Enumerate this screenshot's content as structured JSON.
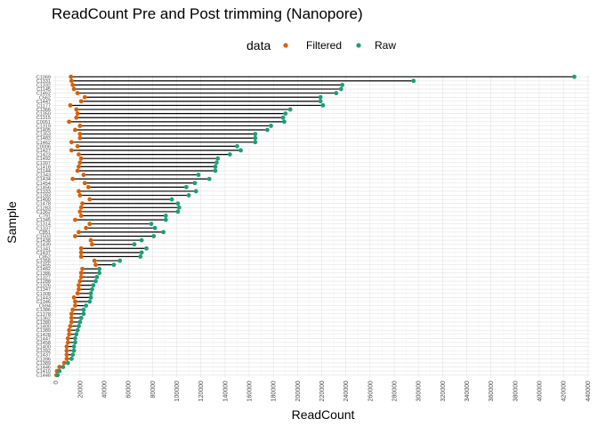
{
  "chart_data": {
    "type": "dumbbell",
    "title": "ReadCount Pre and Post trimming (Nanopore)",
    "xlabel": "ReadCount",
    "ylabel": "Sample",
    "legend": {
      "title": "data",
      "position": "top",
      "entries": [
        {
          "name": "Filtered",
          "color": "#D95F02"
        },
        {
          "name": "Raw",
          "color": "#1B9E77"
        }
      ]
    },
    "xlim": [
      -2000,
      442000
    ],
    "xticks": [
      0,
      20000,
      40000,
      60000,
      80000,
      100000,
      120000,
      140000,
      160000,
      180000,
      200000,
      220000,
      240000,
      260000,
      280000,
      300000,
      320000,
      340000,
      360000,
      380000,
      400000,
      420000,
      440000
    ],
    "xtick_labels": [
      "0",
      "20000",
      "40000",
      "60000",
      "80000",
      "100000",
      "120000",
      "140000",
      "160000",
      "180000",
      "200000",
      "220000",
      "240000",
      "260000",
      "280000",
      "300000",
      "320000",
      "340000",
      "360000",
      "380000",
      "400000",
      "420000",
      "440000"
    ],
    "grid": true,
    "samples": [
      {
        "label": "C1069",
        "raw": 429000,
        "filtered": 12500
      },
      {
        "label": "C1331",
        "raw": 296000,
        "filtered": 13000
      },
      {
        "label": "C1332",
        "raw": 237000,
        "filtered": 14000
      },
      {
        "label": "C1145",
        "raw": 236000,
        "filtered": 15000
      },
      {
        "label": "C1462",
        "raw": 232000,
        "filtered": 18000
      },
      {
        "label": "C562",
        "raw": 219000,
        "filtered": 24000
      },
      {
        "label": "C1447",
        "raw": 219000,
        "filtered": 21000
      },
      {
        "label": "C1177",
        "raw": 221000,
        "filtered": 12000
      },
      {
        "label": "C1366",
        "raw": 194000,
        "filtered": 17000
      },
      {
        "label": "C1350",
        "raw": 190000,
        "filtered": 18000
      },
      {
        "label": "C1315",
        "raw": 188000,
        "filtered": 17000
      },
      {
        "label": "C0051",
        "raw": 189000,
        "filtered": 11000
      },
      {
        "label": "C1319",
        "raw": 178000,
        "filtered": 20000
      },
      {
        "label": "C1405",
        "raw": 175000,
        "filtered": 16000
      },
      {
        "label": "C1353",
        "raw": 165000,
        "filtered": 20000
      },
      {
        "label": "C1483",
        "raw": 165000,
        "filtered": 20000
      },
      {
        "label": "C1462",
        "raw": 165000,
        "filtered": 13000
      },
      {
        "label": "C0006",
        "raw": 150000,
        "filtered": 18000
      },
      {
        "label": "C1427",
        "raw": 153000,
        "filtered": 13000
      },
      {
        "label": "C1423",
        "raw": 144000,
        "filtered": 19000
      },
      {
        "label": "C1492",
        "raw": 134000,
        "filtered": 21000
      },
      {
        "label": "C1307",
        "raw": 133000,
        "filtered": 20000
      },
      {
        "label": "C1418",
        "raw": 132000,
        "filtered": 19000
      },
      {
        "label": "C1144",
        "raw": 132000,
        "filtered": 18000
      },
      {
        "label": "C1343",
        "raw": 118000,
        "filtered": 23000
      },
      {
        "label": "C1434",
        "raw": 127000,
        "filtered": 14000
      },
      {
        "label": "C1454",
        "raw": 115000,
        "filtered": 24000
      },
      {
        "label": "C1456",
        "raw": 108000,
        "filtered": 27000
      },
      {
        "label": "C1333",
        "raw": 116000,
        "filtered": 19000
      },
      {
        "label": "C1283",
        "raw": 110000,
        "filtered": 20000
      },
      {
        "label": "C1400",
        "raw": 96000,
        "filtered": 28000
      },
      {
        "label": "C1478",
        "raw": 101000,
        "filtered": 22000
      },
      {
        "label": "C1283",
        "raw": 102000,
        "filtered": 21000
      },
      {
        "label": "C1362",
        "raw": 101000,
        "filtered": 20000
      },
      {
        "label": "C791",
        "raw": 91000,
        "filtered": 21000
      },
      {
        "label": "C1345",
        "raw": 91000,
        "filtered": 16000
      },
      {
        "label": "C1314",
        "raw": 79000,
        "filtered": 28000
      },
      {
        "label": "C1337",
        "raw": 82000,
        "filtered": 25000
      },
      {
        "label": "C851",
        "raw": 89000,
        "filtered": 19000
      },
      {
        "label": "C1503",
        "raw": 81000,
        "filtered": 16000
      },
      {
        "label": "C1438",
        "raw": 71000,
        "filtered": 29000
      },
      {
        "label": "C1439",
        "raw": 65000,
        "filtered": 30000
      },
      {
        "label": "C1341",
        "raw": 75000,
        "filtered": 21000
      },
      {
        "label": "C1437",
        "raw": 71000,
        "filtered": 21000
      },
      {
        "label": "C852",
        "raw": 70000,
        "filtered": 21000
      },
      {
        "label": "C1356",
        "raw": 53000,
        "filtered": 32000
      },
      {
        "label": "C1455",
        "raw": 48000,
        "filtered": 33000
      },
      {
        "label": "C1482",
        "raw": 36000,
        "filtered": 22000
      },
      {
        "label": "C1386",
        "raw": 36000,
        "filtered": 21000
      },
      {
        "label": "C1327",
        "raw": 34000,
        "filtered": 21000
      },
      {
        "label": "C1288",
        "raw": 33000,
        "filtered": 20000
      },
      {
        "label": "C1326",
        "raw": 31000,
        "filtered": 19000
      },
      {
        "label": "C1347",
        "raw": 30000,
        "filtered": 19000
      },
      {
        "label": "C1308",
        "raw": 29000,
        "filtered": 18000
      },
      {
        "label": "C1443",
        "raw": 29000,
        "filtered": 15000
      },
      {
        "label": "C1346",
        "raw": 28000,
        "filtered": 16000
      },
      {
        "label": "C694",
        "raw": 25000,
        "filtered": 16000
      },
      {
        "label": "C1386",
        "raw": 23000,
        "filtered": 14000
      },
      {
        "label": "C1378",
        "raw": 23000,
        "filtered": 13000
      },
      {
        "label": "C1362",
        "raw": 21000,
        "filtered": 13000
      },
      {
        "label": "C1380",
        "raw": 20000,
        "filtered": 13000
      },
      {
        "label": "C1400",
        "raw": 19000,
        "filtered": 12000
      },
      {
        "label": "C1389",
        "raw": 18000,
        "filtered": 11000
      },
      {
        "label": "C1428",
        "raw": 17000,
        "filtered": 11000
      },
      {
        "label": "C1447",
        "raw": 16000,
        "filtered": 10000
      },
      {
        "label": "C1458",
        "raw": 16000,
        "filtered": 10000
      },
      {
        "label": "C1400",
        "raw": 15000,
        "filtered": 9000
      },
      {
        "label": "C1392",
        "raw": 15000,
        "filtered": 9000
      },
      {
        "label": "C1437",
        "raw": 14000,
        "filtered": 9000
      },
      {
        "label": "C1396",
        "raw": 13000,
        "filtered": 9000
      },
      {
        "label": "C1389",
        "raw": 10000,
        "filtered": 7000
      },
      {
        "label": "C1446",
        "raw": 6000,
        "filtered": 3000
      },
      {
        "label": "C1410",
        "raw": 3000,
        "filtered": 1000
      },
      {
        "label": "C1448",
        "raw": 1500,
        "filtered": 500
      }
    ]
  }
}
